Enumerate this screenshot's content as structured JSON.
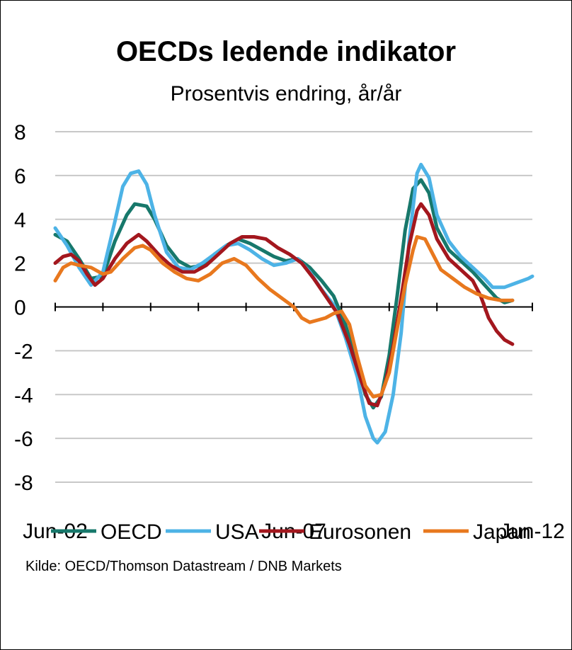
{
  "chart_data": {
    "type": "line",
    "title": "OECDs ledende indikator",
    "subtitle": "Prosentvis endring, år/år",
    "source": "Kilde: OECD/Thomson Datastream / DNB Markets",
    "ylim": [
      -8,
      8
    ],
    "yticks": [
      "8",
      "6",
      "4",
      "2",
      "0",
      "-2",
      "-4",
      "-6",
      "-8"
    ],
    "ytick_values": [
      8,
      6,
      4,
      2,
      0,
      -2,
      -4,
      -6,
      -8
    ],
    "xlim": [
      0,
      120
    ],
    "xtick_labels": [
      {
        "label": "Jun-02",
        "x": 0
      },
      {
        "label": "Jun-07",
        "x": 60
      },
      {
        "label": "Jun-12",
        "x": 120
      }
    ],
    "x_minor_ticks": [
      0,
      12,
      24,
      36,
      48,
      60,
      72,
      84,
      96,
      108,
      120
    ],
    "grid": true,
    "legend_position": "bottom",
    "series": [
      {
        "name": "OECD",
        "color": "#17786b",
        "points": [
          [
            0,
            3.3
          ],
          [
            3,
            3.0
          ],
          [
            6,
            2.2
          ],
          [
            9,
            1.3
          ],
          [
            12,
            1.4
          ],
          [
            15,
            3.0
          ],
          [
            18,
            4.2
          ],
          [
            20,
            4.7
          ],
          [
            23,
            4.6
          ],
          [
            25,
            4.0
          ],
          [
            28,
            2.8
          ],
          [
            31,
            2.1
          ],
          [
            34,
            1.8
          ],
          [
            37,
            1.9
          ],
          [
            40,
            2.4
          ],
          [
            43,
            2.8
          ],
          [
            46,
            3.1
          ],
          [
            49,
            2.9
          ],
          [
            52,
            2.6
          ],
          [
            55,
            2.3
          ],
          [
            58,
            2.1
          ],
          [
            61,
            2.2
          ],
          [
            64,
            1.8
          ],
          [
            67,
            1.2
          ],
          [
            70,
            0.5
          ],
          [
            73,
            -0.8
          ],
          [
            76,
            -2.7
          ],
          [
            78,
            -4.0
          ],
          [
            80,
            -4.6
          ],
          [
            82,
            -4.1
          ],
          [
            84,
            -2.2
          ],
          [
            86,
            0.5
          ],
          [
            88,
            3.5
          ],
          [
            90,
            5.4
          ],
          [
            92,
            5.8
          ],
          [
            94,
            5.2
          ],
          [
            96,
            3.6
          ],
          [
            99,
            2.6
          ],
          [
            102,
            2.1
          ],
          [
            105,
            1.6
          ],
          [
            108,
            1.0
          ],
          [
            111,
            0.4
          ],
          [
            113,
            0.2
          ],
          [
            115,
            0.3
          ]
        ]
      },
      {
        "name": "USA",
        "color": "#4db3e6",
        "points": [
          [
            0,
            3.6
          ],
          [
            3,
            2.8
          ],
          [
            6,
            1.8
          ],
          [
            9,
            1.0
          ],
          [
            12,
            1.6
          ],
          [
            15,
            3.9
          ],
          [
            17,
            5.5
          ],
          [
            19,
            6.1
          ],
          [
            21,
            6.2
          ],
          [
            23,
            5.6
          ],
          [
            25,
            4.2
          ],
          [
            28,
            2.5
          ],
          [
            31,
            1.8
          ],
          [
            34,
            1.7
          ],
          [
            37,
            2.0
          ],
          [
            40,
            2.4
          ],
          [
            43,
            2.8
          ],
          [
            46,
            2.9
          ],
          [
            49,
            2.6
          ],
          [
            52,
            2.2
          ],
          [
            55,
            1.9
          ],
          [
            58,
            2.0
          ],
          [
            61,
            2.2
          ],
          [
            64,
            1.6
          ],
          [
            67,
            0.8
          ],
          [
            70,
            0.1
          ],
          [
            73,
            -1.4
          ],
          [
            76,
            -3.2
          ],
          [
            78,
            -5.0
          ],
          [
            80,
            -6.0
          ],
          [
            81,
            -6.2
          ],
          [
            83,
            -5.7
          ],
          [
            85,
            -4.0
          ],
          [
            87,
            -1.2
          ],
          [
            89,
            3.0
          ],
          [
            91,
            6.1
          ],
          [
            92,
            6.5
          ],
          [
            94,
            5.9
          ],
          [
            96,
            4.2
          ],
          [
            99,
            3.0
          ],
          [
            102,
            2.3
          ],
          [
            105,
            1.8
          ],
          [
            108,
            1.3
          ],
          [
            110,
            0.9
          ],
          [
            113,
            0.9
          ],
          [
            116,
            1.1
          ],
          [
            119,
            1.3
          ],
          [
            120,
            1.4
          ]
        ]
      },
      {
        "name": "Eurosonen",
        "color": "#a3171e",
        "points": [
          [
            0,
            2.0
          ],
          [
            2,
            2.3
          ],
          [
            4,
            2.4
          ],
          [
            6,
            2.1
          ],
          [
            8,
            1.5
          ],
          [
            10,
            1.0
          ],
          [
            12,
            1.3
          ],
          [
            15,
            2.2
          ],
          [
            18,
            2.9
          ],
          [
            21,
            3.3
          ],
          [
            23,
            3.0
          ],
          [
            26,
            2.4
          ],
          [
            29,
            1.9
          ],
          [
            32,
            1.6
          ],
          [
            35,
            1.6
          ],
          [
            38,
            1.9
          ],
          [
            41,
            2.4
          ],
          [
            44,
            2.9
          ],
          [
            47,
            3.2
          ],
          [
            50,
            3.2
          ],
          [
            53,
            3.1
          ],
          [
            56,
            2.7
          ],
          [
            59,
            2.4
          ],
          [
            62,
            2.0
          ],
          [
            65,
            1.3
          ],
          [
            68,
            0.5
          ],
          [
            71,
            -0.3
          ],
          [
            74,
            -1.7
          ],
          [
            77,
            -3.4
          ],
          [
            79,
            -4.4
          ],
          [
            81,
            -4.5
          ],
          [
            83,
            -3.5
          ],
          [
            85,
            -1.8
          ],
          [
            87,
            0.4
          ],
          [
            89,
            2.8
          ],
          [
            91,
            4.4
          ],
          [
            92,
            4.7
          ],
          [
            94,
            4.2
          ],
          [
            96,
            3.1
          ],
          [
            99,
            2.2
          ],
          [
            102,
            1.7
          ],
          [
            105,
            1.2
          ],
          [
            107,
            0.5
          ],
          [
            109,
            -0.5
          ],
          [
            111,
            -1.1
          ],
          [
            113,
            -1.5
          ],
          [
            115,
            -1.7
          ]
        ]
      },
      {
        "name": "Japan",
        "color": "#e8781e",
        "points": [
          [
            0,
            1.2
          ],
          [
            2,
            1.8
          ],
          [
            4,
            2.0
          ],
          [
            6,
            1.9
          ],
          [
            9,
            1.8
          ],
          [
            12,
            1.5
          ],
          [
            14,
            1.6
          ],
          [
            17,
            2.2
          ],
          [
            20,
            2.7
          ],
          [
            22,
            2.8
          ],
          [
            24,
            2.6
          ],
          [
            27,
            2.0
          ],
          [
            30,
            1.6
          ],
          [
            33,
            1.3
          ],
          [
            36,
            1.2
          ],
          [
            39,
            1.5
          ],
          [
            42,
            2.0
          ],
          [
            45,
            2.2
          ],
          [
            48,
            1.9
          ],
          [
            51,
            1.3
          ],
          [
            54,
            0.8
          ],
          [
            57,
            0.4
          ],
          [
            60,
            0.0
          ],
          [
            62,
            -0.5
          ],
          [
            64,
            -0.7
          ],
          [
            66,
            -0.6
          ],
          [
            68,
            -0.5
          ],
          [
            70,
            -0.3
          ],
          [
            72,
            -0.2
          ],
          [
            74,
            -0.8
          ],
          [
            76,
            -2.3
          ],
          [
            78,
            -3.6
          ],
          [
            80,
            -4.1
          ],
          [
            82,
            -4.0
          ],
          [
            84,
            -3.0
          ],
          [
            86,
            -1.0
          ],
          [
            88,
            1.0
          ],
          [
            90,
            2.6
          ],
          [
            91,
            3.2
          ],
          [
            93,
            3.1
          ],
          [
            95,
            2.4
          ],
          [
            97,
            1.7
          ],
          [
            100,
            1.3
          ],
          [
            103,
            0.9
          ],
          [
            106,
            0.6
          ],
          [
            109,
            0.4
          ],
          [
            112,
            0.3
          ],
          [
            115,
            0.3
          ]
        ]
      }
    ]
  }
}
